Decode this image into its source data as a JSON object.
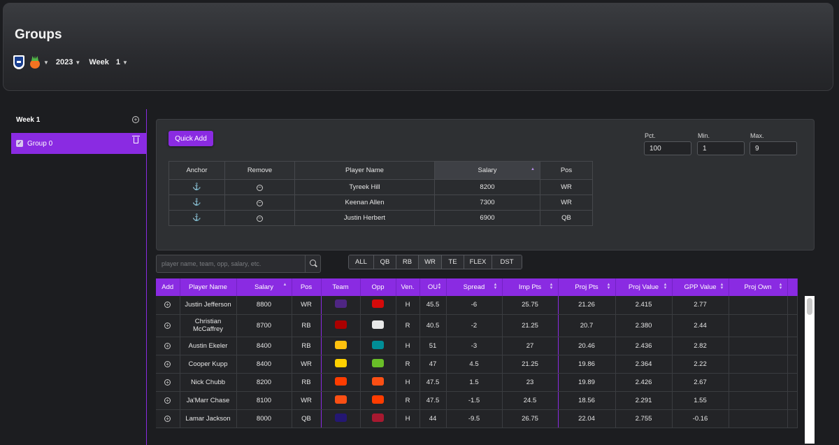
{
  "header": {
    "title": "Groups",
    "season": "2023",
    "week_label": "Week",
    "week_value": "1"
  },
  "sidebar": {
    "week": "Week 1",
    "group": "Group 0"
  },
  "panel": {
    "quick_add": "Quick Add",
    "pct_label": "Pct.",
    "pct_value": "100",
    "min_label": "Min.",
    "min_value": "1",
    "max_label": "Max.",
    "max_value": "9",
    "columns": [
      "Anchor",
      "Remove",
      "Player Name",
      "Salary",
      "Pos"
    ],
    "rows": [
      {
        "name": "Tyreek Hill",
        "salary": "8200",
        "pos": "WR"
      },
      {
        "name": "Keenan Allen",
        "salary": "7300",
        "pos": "WR"
      },
      {
        "name": "Justin Herbert",
        "salary": "6900",
        "pos": "QB"
      }
    ]
  },
  "search": {
    "placeholder": "player name, team, opp, salary, etc."
  },
  "positions": [
    "ALL",
    "QB",
    "RB",
    "WR",
    "TE",
    "FLEX",
    "DST"
  ],
  "players": {
    "columns": [
      "Add",
      "Player Name",
      "Salary",
      "Pos",
      "Team",
      "Opp",
      "Ven.",
      "OU",
      "Spread",
      "Imp Pts",
      "Proj Pts",
      "Proj Value",
      "GPP Value",
      "Proj Own"
    ],
    "rows": [
      {
        "name": "Justin Jefferson",
        "salary": "8800",
        "pos": "WR",
        "team": "vikings-icon",
        "team_color": "#4f2683",
        "opp": "buccaneers-icon",
        "opp_color": "#d50a0a",
        "ven": "H",
        "ou": "45.5",
        "spread": "-6",
        "imp": "25.75",
        "proj": "21.26",
        "pv": "2.415",
        "gpp": "2.77",
        "own": ""
      },
      {
        "name": "Christian McCaffrey",
        "salary": "8700",
        "pos": "RB",
        "team": "49ers-icon",
        "team_color": "#aa0000",
        "opp": "steelers-icon",
        "opp_color": "#e8e8e8",
        "ven": "R",
        "ou": "40.5",
        "spread": "-2",
        "imp": "21.25",
        "proj": "20.7",
        "pv": "2.380",
        "gpp": "2.44",
        "own": ""
      },
      {
        "name": "Austin Ekeler",
        "salary": "8400",
        "pos": "RB",
        "team": "chargers-icon",
        "team_color": "#ffc20e",
        "opp": "dolphins-icon",
        "opp_color": "#008e97",
        "ven": "H",
        "ou": "51",
        "spread": "-3",
        "imp": "27",
        "proj": "20.46",
        "pv": "2.436",
        "gpp": "2.82",
        "own": ""
      },
      {
        "name": "Cooper Kupp",
        "salary": "8400",
        "pos": "WR",
        "team": "rams-icon",
        "team_color": "#ffd100",
        "opp": "seahawks-icon",
        "opp_color": "#69be28",
        "ven": "R",
        "ou": "47",
        "spread": "4.5",
        "imp": "21.25",
        "proj": "19.86",
        "pv": "2.364",
        "gpp": "2.22",
        "own": ""
      },
      {
        "name": "Nick Chubb",
        "salary": "8200",
        "pos": "RB",
        "team": "browns-icon",
        "team_color": "#ff3c00",
        "opp": "bengals-icon",
        "opp_color": "#fb4f14",
        "ven": "H",
        "ou": "47.5",
        "spread": "1.5",
        "imp": "23",
        "proj": "19.89",
        "pv": "2.426",
        "gpp": "2.67",
        "own": ""
      },
      {
        "name": "Ja'Marr Chase",
        "salary": "8100",
        "pos": "WR",
        "team": "bengals-icon",
        "team_color": "#fb4f14",
        "opp": "browns-icon",
        "opp_color": "#ff3c00",
        "ven": "R",
        "ou": "47.5",
        "spread": "-1.5",
        "imp": "24.5",
        "proj": "18.56",
        "pv": "2.291",
        "gpp": "1.55",
        "own": ""
      },
      {
        "name": "Lamar Jackson",
        "salary": "8000",
        "pos": "QB",
        "team": "ravens-icon",
        "team_color": "#241773",
        "opp": "texans-icon",
        "opp_color": "#a71930",
        "ven": "H",
        "ou": "44",
        "spread": "-9.5",
        "imp": "26.75",
        "proj": "22.04",
        "pv": "2.755",
        "gpp": "-0.16",
        "own": ""
      }
    ]
  }
}
